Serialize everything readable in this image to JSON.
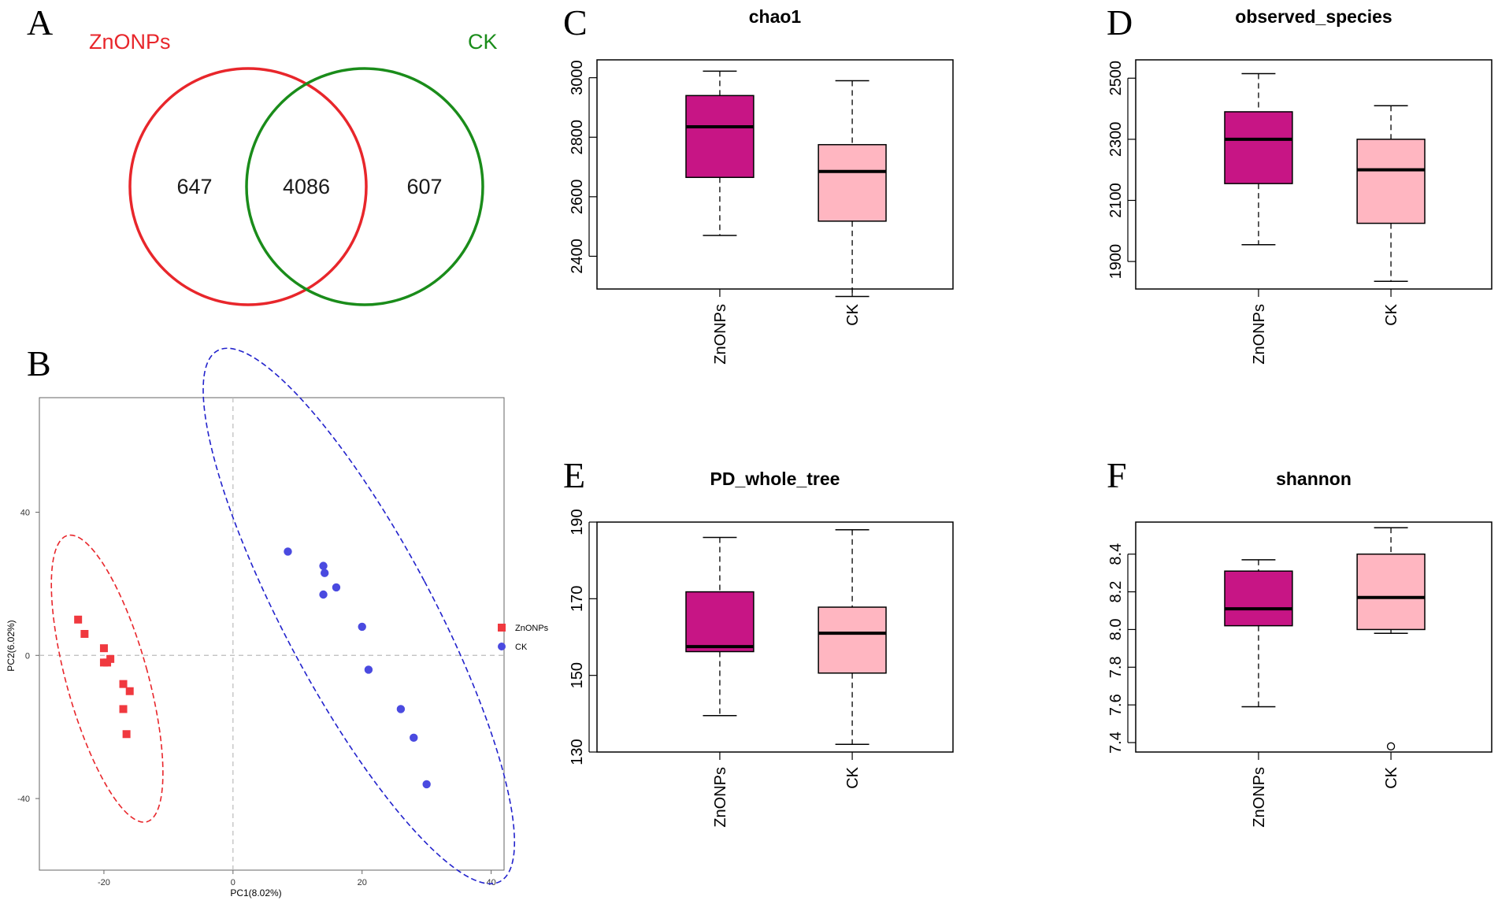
{
  "panel_letters": {
    "A": "A",
    "B": "B",
    "C": "C",
    "D": "D",
    "E": "E",
    "F": "F"
  },
  "colors": {
    "znonps_venn": "#e8262b",
    "ck_venn": "#1a8c1a",
    "znonps_box": "#c71585",
    "ck_box": "#ffb6c1",
    "pca_zn": "#f0393f",
    "pca_ck": "#4a4ae0",
    "pca_zn_ellipse": "#e8262b",
    "pca_ck_ellipse": "#2222cc"
  },
  "chart_data": [
    {
      "id": "A",
      "type": "venn",
      "sets": [
        "ZnONPs",
        "CK"
      ],
      "only_left": "647",
      "intersection": "4086",
      "only_right": "607"
    },
    {
      "id": "B",
      "type": "scatter",
      "xlabel": "PC1(8.02%)",
      "ylabel": "PC2(6.02%)",
      "xlim": [
        -30,
        42
      ],
      "ylim": [
        -60,
        72
      ],
      "xticks": [
        "-20",
        "0",
        "20",
        "40"
      ],
      "yticks": [
        "-40",
        "0",
        "40"
      ],
      "legend": [
        "ZnONPs",
        "CK"
      ],
      "series": [
        {
          "name": "ZnONPs",
          "marker": "square",
          "points": [
            [
              -24,
              10
            ],
            [
              -23,
              6
            ],
            [
              -20,
              2
            ],
            [
              -19,
              -1
            ],
            [
              -20,
              -2
            ],
            [
              -19.5,
              -2
            ],
            [
              -17,
              -8
            ],
            [
              -16,
              -10
            ],
            [
              -17,
              -15
            ],
            [
              -16.5,
              -22
            ]
          ]
        },
        {
          "name": "CK",
          "marker": "circle",
          "points": [
            [
              8.5,
              29
            ],
            [
              14,
              25
            ],
            [
              14.2,
              23
            ],
            [
              14,
              17
            ],
            [
              16,
              19
            ],
            [
              20,
              8
            ],
            [
              21,
              -4
            ],
            [
              26,
              -15
            ],
            [
              28,
              -23
            ],
            [
              30,
              -36
            ]
          ]
        }
      ],
      "ellipses": [
        {
          "name": "ZnONPs",
          "center": [
            -19.5,
            -6.5
          ],
          "semi_axes": [
            6.3,
            41.5
          ],
          "rotation_deg": 15.5
        },
        {
          "name": "CK",
          "center": [
            19.5,
            11
          ],
          "semi_axes": [
            11.5,
            84
          ],
          "rotation_deg": 28
        }
      ]
    },
    {
      "id": "C",
      "type": "box",
      "title": "chao1",
      "categories": [
        "ZnONPs",
        "CK"
      ],
      "ylim": [
        2290,
        3060
      ],
      "yticks": [
        "2400",
        "2600",
        "2800",
        "3000"
      ],
      "boxes": [
        {
          "min": 2470,
          "q1": 2665,
          "median": 2835,
          "q3": 2940,
          "max": 3022
        },
        {
          "min": 2265,
          "q1": 2518,
          "median": 2685,
          "q3": 2775,
          "max": 2990
        }
      ]
    },
    {
      "id": "D",
      "type": "box",
      "title": "observed_species",
      "categories": [
        "ZnONPs",
        "CK"
      ],
      "ylim": [
        1810,
        2560
      ],
      "yticks": [
        "1900",
        "2100",
        "2300",
        "2500"
      ],
      "boxes": [
        {
          "min": 1955,
          "q1": 2155,
          "median": 2300,
          "q3": 2390,
          "max": 2515
        },
        {
          "min": 1835,
          "q1": 2025,
          "median": 2200,
          "q3": 2300,
          "max": 2410
        }
      ]
    },
    {
      "id": "E",
      "type": "box",
      "title": "PD_whole_tree",
      "categories": [
        "ZnONPs",
        "CK"
      ],
      "ylim": [
        130,
        190
      ],
      "yticks": [
        "130",
        "150",
        "170",
        "190"
      ],
      "boxes": [
        {
          "min": 139.5,
          "q1": 156.2,
          "median": 157.5,
          "q3": 171.8,
          "max": 186
        },
        {
          "min": 132,
          "q1": 150.6,
          "median": 161,
          "q3": 167.8,
          "max": 188
        }
      ]
    },
    {
      "id": "F",
      "type": "box",
      "title": "shannon",
      "categories": [
        "ZnONPs",
        "CK"
      ],
      "ylim": [
        7.35,
        8.57
      ],
      "yticks": [
        "7.4",
        "7.6",
        "7.8",
        "8.0",
        "8.2",
        "8.4"
      ],
      "boxes": [
        {
          "min": 7.59,
          "q1": 8.02,
          "median": 8.11,
          "q3": 8.31,
          "max": 8.37
        },
        {
          "min": 7.98,
          "q1": 8.0,
          "median": 8.17,
          "q3": 8.4,
          "max": 8.54,
          "outliers": [
            7.38
          ]
        }
      ]
    }
  ]
}
